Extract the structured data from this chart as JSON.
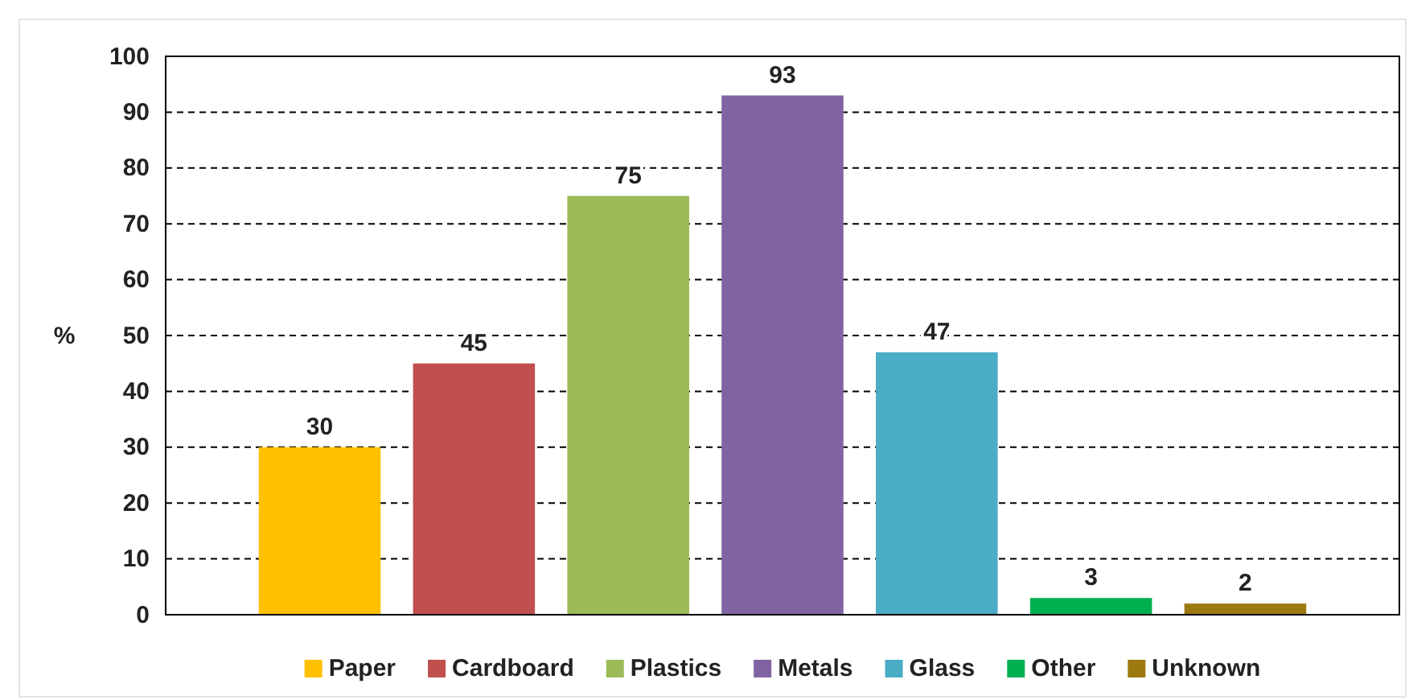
{
  "chart_data": {
    "type": "bar",
    "ylabel": "%",
    "categories": [
      null
    ],
    "series": [
      {
        "name": "Paper",
        "color": "#ffc000",
        "values": [
          30
        ]
      },
      {
        "name": "Cardboard",
        "color": "#c0504d",
        "values": [
          45
        ]
      },
      {
        "name": "Plastics",
        "color": "#9bbb59",
        "values": [
          75
        ]
      },
      {
        "name": "Metals",
        "color": "#8064a2",
        "values": [
          93
        ]
      },
      {
        "name": "Glass",
        "color": "#4bacc6",
        "values": [
          47
        ]
      },
      {
        "name": "Other",
        "color": "#00b050",
        "values": [
          3
        ]
      },
      {
        "name": "Unknown",
        "color": "#9c7a10",
        "values": [
          2
        ]
      }
    ],
    "ylim": [
      0,
      100
    ],
    "yticks": [
      0,
      10,
      20,
      30,
      40,
      50,
      60,
      70,
      80,
      90,
      100
    ],
    "grid": "y",
    "data_labels": true,
    "legend": "bottom"
  }
}
